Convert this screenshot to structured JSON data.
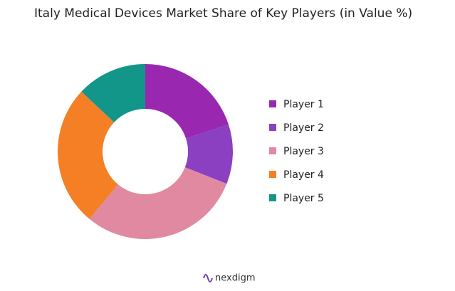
{
  "chart_data": {
    "type": "pie",
    "title": "Italy Medical Devices Market Share of Key Players (in Value %)",
    "categories": [
      "Player 1",
      "Player 2",
      "Player 3",
      "Player 4",
      "Player 5"
    ],
    "values": [
      20,
      11,
      30,
      26,
      13
    ],
    "colors": [
      "#9a27b0",
      "#8b3fc1",
      "#e089a1",
      "#f47f24",
      "#12968a"
    ],
    "donut": true,
    "legend": "right"
  },
  "footer": {
    "logo": "nexdigm"
  }
}
